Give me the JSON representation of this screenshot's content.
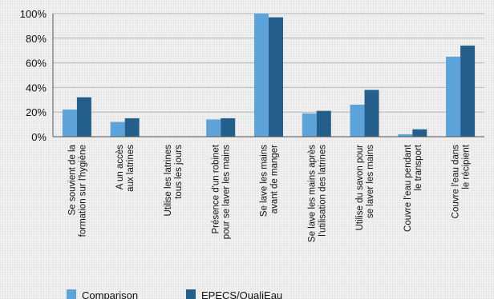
{
  "chart_data": {
    "type": "bar",
    "categories": [
      [
        "Se souvient de la",
        "formation sur l'hygiène"
      ],
      [
        "A un accès",
        "aux latrines"
      ],
      [
        "Utilise les latrines",
        "tous les jours"
      ],
      [
        "Présence d'un robinet",
        "pour se laver les mains"
      ],
      [
        "Se lave les mains",
        "avant de manger"
      ],
      [
        "Se lave les mains après",
        "l'utilisation des latrines"
      ],
      [
        "Utilise du savon pour",
        "se laver les mains"
      ],
      [
        "Couvre l'eau pendant",
        "le transport"
      ],
      [
        "Couvre l'eau dans",
        "le récipient"
      ]
    ],
    "series": [
      {
        "name": "Comparison",
        "color": "#5ba3d9",
        "values": [
          22,
          12,
          0,
          14,
          100,
          19,
          26,
          2,
          65
        ]
      },
      {
        "name": "EPECS/QualiEau",
        "color": "#245f8c",
        "values": [
          32,
          15,
          0,
          15,
          97,
          21,
          38,
          6,
          74
        ]
      }
    ],
    "yticks": [
      "0%",
      "20%",
      "40%",
      "60%",
      "80%",
      "100%"
    ],
    "ylim": [
      0,
      100
    ],
    "grid": true,
    "legend": "bottom-left"
  }
}
